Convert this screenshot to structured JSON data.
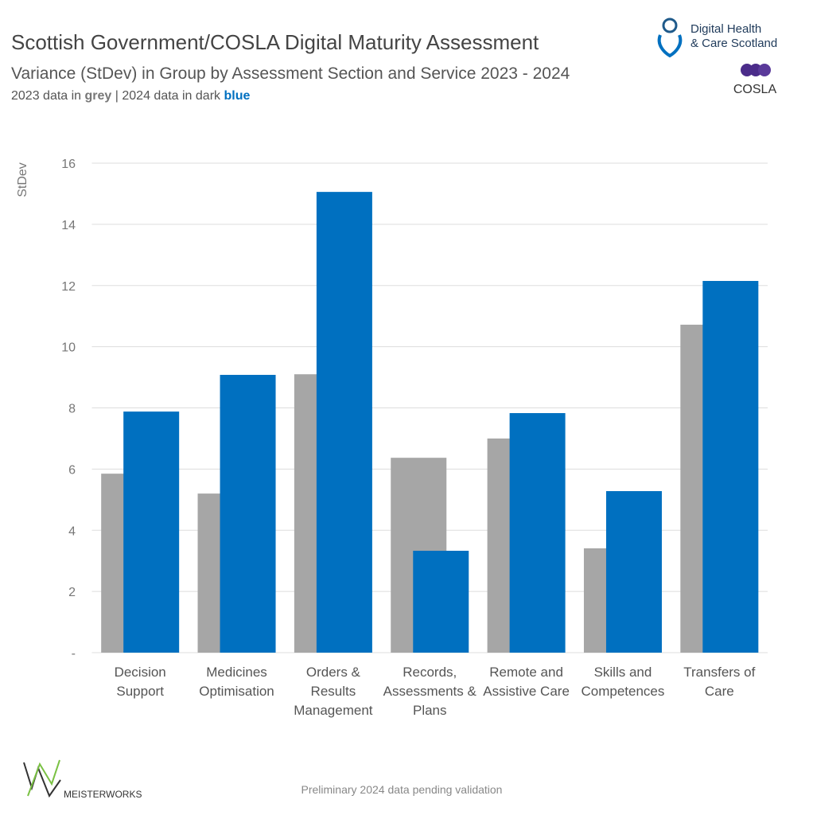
{
  "chart_data": {
    "type": "bar",
    "title": "Scottish Government/COSLA Digital Maturity Assessment",
    "subtitle": "Variance (StDev) in Group by Assessment Section and Service 2023 - 2024",
    "note": [
      " data in ",
      "grey",
      " | ",
      " data in dark ",
      "blue"
    ],
    "y_label": "StDev",
    "categories": [
      "Decision\nSupport",
      "Medicines\nOptimisation",
      "Orders &\nResults\nManagement",
      "Records,\nAssessments &\nPlans",
      "Remote and\nAssistive Care",
      "Skills and\nCompetences",
      "Transfers of\nCare"
    ],
    "series": [
      {
        "name": "2023",
        "color": "#a6a6a6",
        "values": [
          5.85,
          5.2,
          9.1,
          6.37,
          7.0,
          3.41,
          10.72
        ]
      },
      {
        "name": "2024",
        "color": "#0070c0",
        "values": [
          7.88,
          9.08,
          15.06,
          3.33,
          7.83,
          5.28,
          12.15
        ]
      }
    ],
    "ylim": [
      0,
      16
    ],
    "yticks": [
      {
        "value": 0,
        "label": "-"
      },
      2,
      4,
      6,
      8,
      10,
      12,
      14,
      16
    ],
    "grid": true,
    "footnote": "Preliminary 2024 data pending validation",
    "logos": {
      "dhcs": [
        "Digital Health",
        "& Care Scotland"
      ],
      "cosla": "COSLA",
      "meisterworks": "MEISTERWORKS"
    }
  }
}
